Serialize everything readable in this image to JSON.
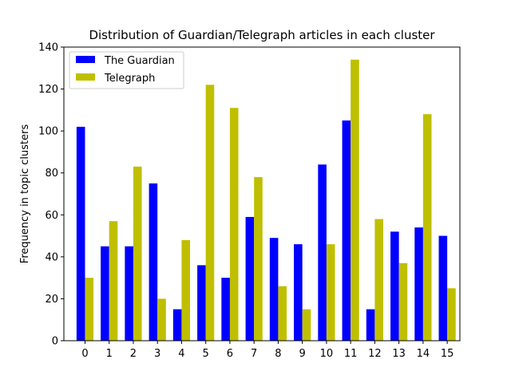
{
  "chart_data": {
    "type": "bar",
    "title": "Distribution of Guardian/Telegraph articles in each cluster",
    "xlabel": "",
    "ylabel": "Frequency in topic clusters",
    "categories": [
      "0",
      "1",
      "2",
      "3",
      "4",
      "5",
      "6",
      "7",
      "8",
      "9",
      "10",
      "11",
      "12",
      "13",
      "14",
      "15"
    ],
    "series": [
      {
        "name": "The Guardian",
        "color": "#0000ff",
        "values": [
          102,
          45,
          45,
          75,
          15,
          36,
          30,
          59,
          49,
          46,
          84,
          105,
          15,
          52,
          54,
          50
        ]
      },
      {
        "name": "Telegraph",
        "color": "#bfbf00",
        "values": [
          30,
          57,
          83,
          20,
          48,
          122,
          111,
          78,
          26,
          15,
          46,
          134,
          58,
          37,
          108,
          25
        ]
      }
    ],
    "ylim": [
      0,
      140
    ],
    "yticks": [
      0,
      20,
      40,
      60,
      80,
      100,
      120,
      140
    ],
    "grid": false,
    "legend_position": "top-left"
  }
}
